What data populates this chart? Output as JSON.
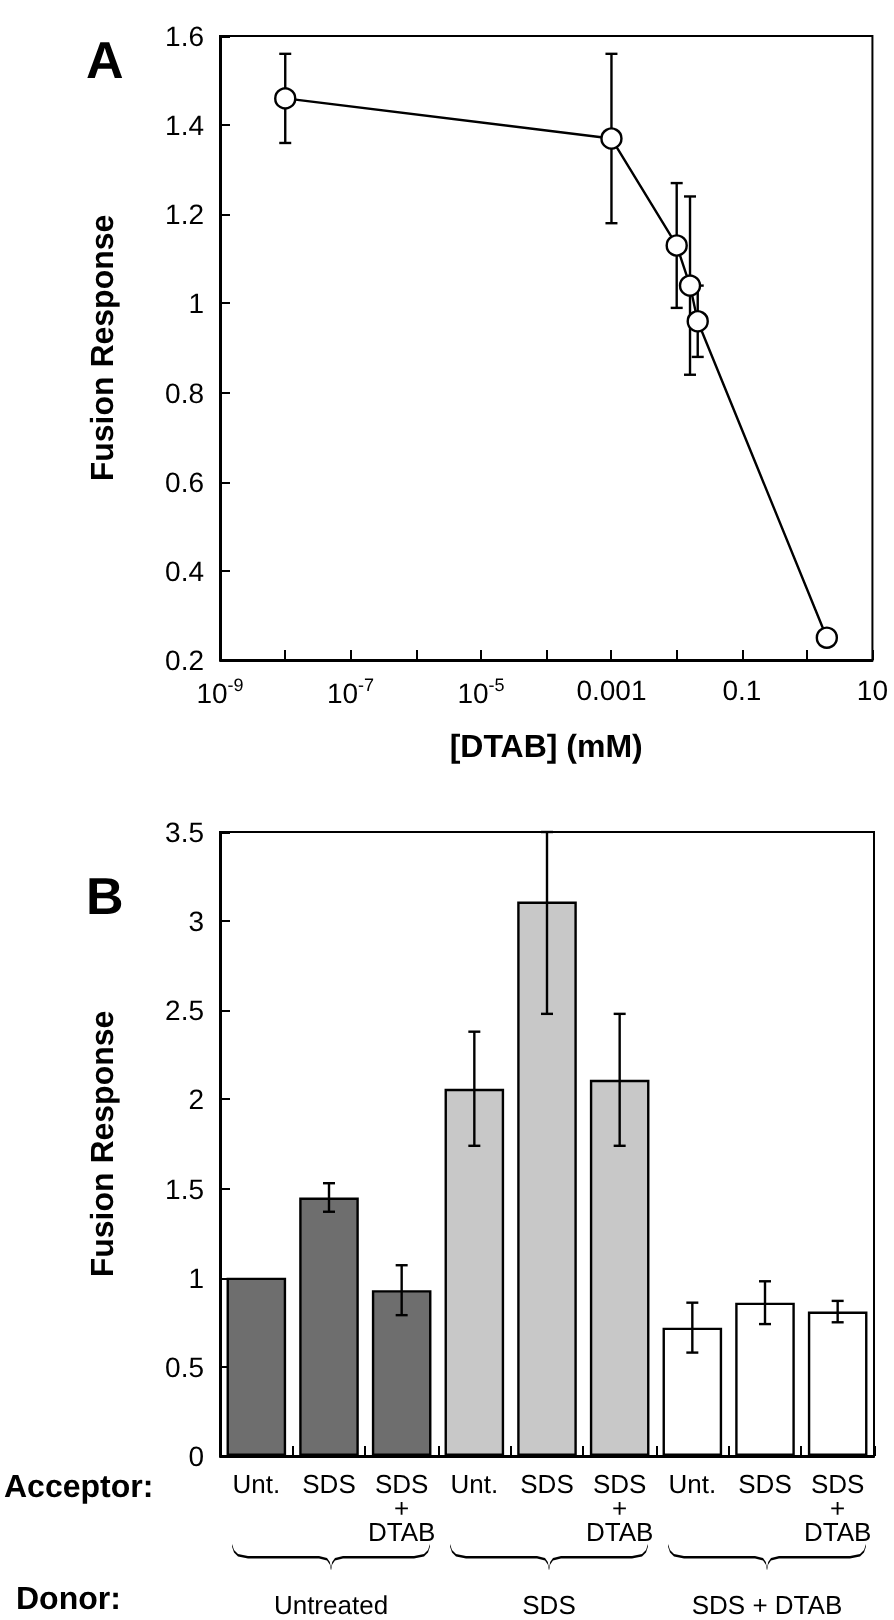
{
  "chart_data": [
    {
      "type": "line",
      "title": "A",
      "xlabel": "[DTAB] (mM)",
      "ylabel": "Fusion Response",
      "log": "x",
      "marker": "circle",
      "line_style": "solid",
      "grid": false,
      "x": [
        1e-08,
        0.001,
        0.01,
        0.016,
        0.021,
        2
      ],
      "series": [
        {
          "color": "#000000",
          "values": [
            1.46,
            1.37,
            1.13,
            1.04,
            0.96,
            0.25
          ],
          "errors": [
            0.1,
            0.19,
            0.14,
            0.2,
            0.08,
            null
          ]
        }
      ],
      "xlim": [
        1e-09,
        10
      ],
      "xticks": [
        {
          "value": 1e-09,
          "label": "10$^{-9}$"
        },
        {
          "value": 1e-08,
          "label": null
        },
        {
          "value": 1e-07,
          "label": "10$^{-7}$"
        },
        {
          "value": 1e-06,
          "label": null
        },
        {
          "value": 1e-05,
          "label": "10$^{-5}$"
        },
        {
          "value": 0.0001,
          "label": null
        },
        0.001,
        {
          "value": 0.01,
          "label": null
        },
        0.1,
        {
          "value": 1,
          "label": null
        },
        10
      ],
      "ylim": [
        0.2,
        1.6
      ],
      "yticks": [
        0.2,
        0.4,
        0.6,
        0.8,
        1,
        1.2,
        1.4,
        1.6
      ]
    },
    {
      "type": "bar",
      "title": "B",
      "xlabel": "Acceptor:",
      "ylabel": "Fusion Response",
      "grid": false,
      "categories": [
        "Unt.",
        "SDS",
        "SDS\n+\nDTAB",
        "Unt.",
        "SDS",
        "SDS\n+\nDTAB",
        "Unt.",
        "SDS",
        "SDS\n+\nDTAB"
      ],
      "values": [
        1.0,
        1.45,
        0.93,
        2.06,
        3.11,
        2.11,
        0.72,
        0.86,
        0.81
      ],
      "colors": [
        "#6e6e6e",
        "#6e6e6e",
        "#6e6e6e",
        "#c8c8c8",
        "#c8c8c8",
        "#c8c8c8",
        "#ffffff",
        "#ffffff",
        "#ffffff"
      ],
      "errors": [
        null,
        0.08,
        0.14,
        0.32,
        [
          2.48,
          3.5
        ],
        0.37,
        0.14,
        0.12,
        0.06
      ],
      "annotations": [
        "Donor:",
        "Untreated",
        "SDS",
        "SDS + DTAB"
      ],
      "ylim": [
        0,
        3.5
      ],
      "yticks": [
        0,
        0.5,
        1,
        1.5,
        2,
        2.5,
        3,
        3.5
      ]
    }
  ]
}
